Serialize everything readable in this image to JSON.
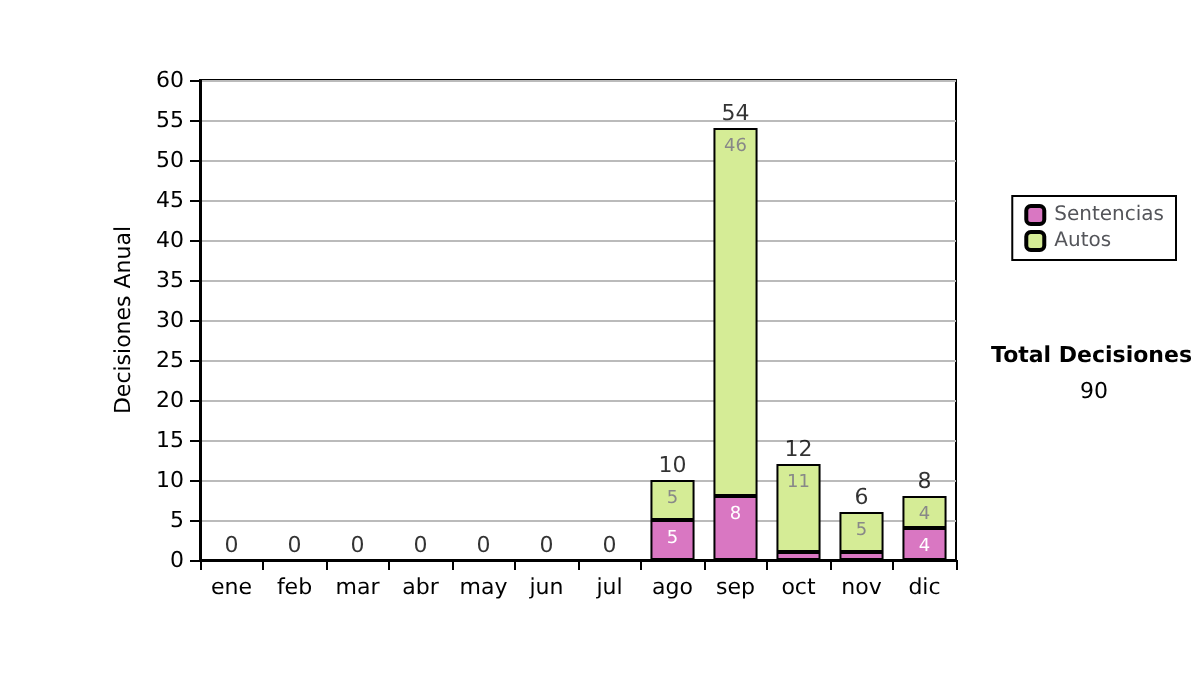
{
  "chart_data": {
    "type": "bar",
    "stacked": true,
    "ylabel": "Decisiones Anual",
    "categories": [
      "ene",
      "feb",
      "mar",
      "abr",
      "may",
      "jun",
      "jul",
      "ago",
      "sep",
      "oct",
      "nov",
      "dic"
    ],
    "series": [
      {
        "name": "Sentencias",
        "color": "#d977c2",
        "values": [
          0,
          0,
          0,
          0,
          0,
          0,
          0,
          5,
          8,
          1,
          1,
          4
        ],
        "value_labels": [
          null,
          null,
          null,
          null,
          null,
          null,
          null,
          "5",
          "8",
          null,
          null,
          "4"
        ]
      },
      {
        "name": "Autos",
        "color": "#d5ec96",
        "values": [
          0,
          0,
          0,
          0,
          0,
          0,
          0,
          5,
          46,
          11,
          5,
          4
        ],
        "value_labels": [
          null,
          null,
          null,
          null,
          null,
          null,
          null,
          "5",
          "46",
          "11",
          "5",
          "4"
        ]
      }
    ],
    "totals": [
      "0",
      "0",
      "0",
      "0",
      "0",
      "0",
      "0",
      "10",
      "54",
      "12",
      "6",
      "8"
    ],
    "ylim": [
      0,
      60
    ],
    "yticks": [
      0,
      5,
      10,
      15,
      20,
      25,
      30,
      35,
      40,
      45,
      50,
      55,
      60
    ],
    "grid": "y",
    "legend": "right",
    "annotations": [
      "Total Decisiones",
      "90"
    ]
  }
}
